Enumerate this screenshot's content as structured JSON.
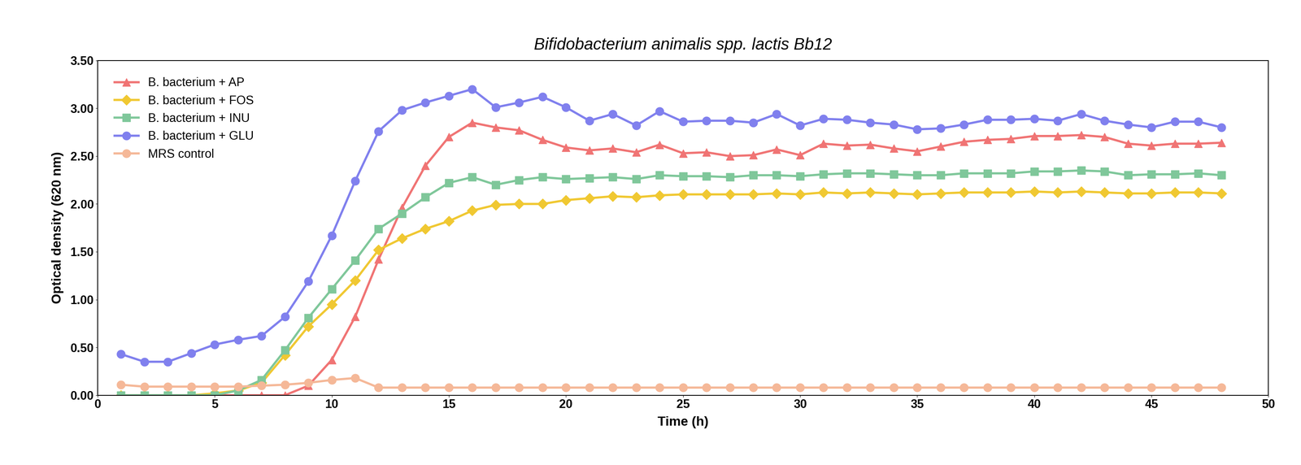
{
  "chart_data": {
    "type": "line",
    "title": "Bifidobacterium animalis spp. lactis Bb12",
    "x_label": "Time (h)",
    "y_label": "Optical density (620 nm)",
    "x": [
      1,
      2,
      3,
      4,
      5,
      6,
      7,
      8,
      9,
      10,
      11,
      12,
      13,
      14,
      15,
      16,
      17,
      18,
      19,
      20,
      21,
      22,
      23,
      24,
      25,
      26,
      27,
      28,
      29,
      30,
      31,
      32,
      33,
      34,
      35,
      36,
      37,
      38,
      39,
      40,
      41,
      42,
      43,
      44,
      45,
      46,
      47,
      48
    ],
    "series": [
      {
        "name": "B. bacterium + AP",
        "color": "#f07474",
        "marker": "triangle",
        "values": [
          0.0,
          0.0,
          0.0,
          0.0,
          0.0,
          0.0,
          0.0,
          0.0,
          0.1,
          0.37,
          0.82,
          1.42,
          1.96,
          2.4,
          2.7,
          2.85,
          2.8,
          2.77,
          2.67,
          2.59,
          2.56,
          2.58,
          2.54,
          2.62,
          2.53,
          2.54,
          2.5,
          2.51,
          2.57,
          2.51,
          2.63,
          2.61,
          2.62,
          2.58,
          2.55,
          2.6,
          2.65,
          2.67,
          2.68,
          2.71,
          2.71,
          2.72,
          2.7,
          2.63,
          2.61,
          2.63,
          2.63,
          2.64
        ]
      },
      {
        "name": "B. bacterium + FOS",
        "color": "#f0c832",
        "marker": "diamond",
        "values": [
          0.0,
          0.0,
          0.0,
          0.0,
          0.02,
          0.05,
          0.13,
          0.42,
          0.72,
          0.95,
          1.2,
          1.52,
          1.64,
          1.74,
          1.82,
          1.93,
          1.99,
          2.0,
          2.0,
          2.04,
          2.06,
          2.08,
          2.07,
          2.09,
          2.1,
          2.1,
          2.1,
          2.1,
          2.11,
          2.1,
          2.12,
          2.11,
          2.12,
          2.11,
          2.1,
          2.11,
          2.12,
          2.12,
          2.12,
          2.13,
          2.12,
          2.13,
          2.12,
          2.11,
          2.11,
          2.12,
          2.12,
          2.11
        ]
      },
      {
        "name": "B. bacterium + INU",
        "color": "#7fc79a",
        "marker": "square",
        "values": [
          0.0,
          0.0,
          0.0,
          0.0,
          0.0,
          0.05,
          0.16,
          0.47,
          0.81,
          1.11,
          1.41,
          1.74,
          1.9,
          2.07,
          2.22,
          2.28,
          2.2,
          2.25,
          2.28,
          2.26,
          2.27,
          2.28,
          2.26,
          2.3,
          2.29,
          2.29,
          2.28,
          2.3,
          2.3,
          2.29,
          2.31,
          2.32,
          2.32,
          2.31,
          2.3,
          2.3,
          2.32,
          2.32,
          2.32,
          2.34,
          2.34,
          2.35,
          2.34,
          2.3,
          2.31,
          2.31,
          2.32,
          2.3
        ]
      },
      {
        "name": "B. bacterium + GLU",
        "color": "#8080ee",
        "marker": "circle",
        "values": [
          0.43,
          0.35,
          0.35,
          0.44,
          0.53,
          0.58,
          0.62,
          0.82,
          1.19,
          1.67,
          2.24,
          2.76,
          2.98,
          3.06,
          3.13,
          3.2,
          3.01,
          3.06,
          3.12,
          3.01,
          2.87,
          2.94,
          2.82,
          2.97,
          2.86,
          2.87,
          2.87,
          2.85,
          2.94,
          2.82,
          2.89,
          2.88,
          2.85,
          2.83,
          2.78,
          2.79,
          2.83,
          2.88,
          2.88,
          2.89,
          2.87,
          2.94,
          2.87,
          2.83,
          2.8,
          2.86,
          2.86,
          2.8
        ]
      },
      {
        "name": "MRS control",
        "color": "#f5b898",
        "marker": "circle",
        "values": [
          0.11,
          0.09,
          0.09,
          0.09,
          0.09,
          0.09,
          0.1,
          0.11,
          0.13,
          0.16,
          0.18,
          0.08,
          0.08,
          0.08,
          0.08,
          0.08,
          0.08,
          0.08,
          0.08,
          0.08,
          0.08,
          0.08,
          0.08,
          0.08,
          0.08,
          0.08,
          0.08,
          0.08,
          0.08,
          0.08,
          0.08,
          0.08,
          0.08,
          0.08,
          0.08,
          0.08,
          0.08,
          0.08,
          0.08,
          0.08,
          0.08,
          0.08,
          0.08,
          0.08,
          0.08,
          0.08,
          0.08,
          0.08
        ]
      }
    ],
    "xlim": [
      0,
      50
    ],
    "xticks": [
      0,
      5,
      10,
      15,
      20,
      25,
      30,
      35,
      40,
      45,
      50
    ],
    "ylim": [
      0,
      3.5
    ],
    "yticks": [
      {
        "value": 0,
        "label": "0.00"
      },
      {
        "value": 0.5,
        "label": "0.50"
      },
      {
        "value": 1.0,
        "label": "1.00"
      },
      {
        "value": 1.5,
        "label": "1.50"
      },
      {
        "value": 2.0,
        "label": "2.00"
      },
      {
        "value": 2.5,
        "label": "2.50"
      },
      {
        "value": 3.0,
        "label": "3.00"
      },
      {
        "value": 3.5,
        "label": "3.50"
      }
    ],
    "grid": false,
    "legend": "upper left"
  }
}
